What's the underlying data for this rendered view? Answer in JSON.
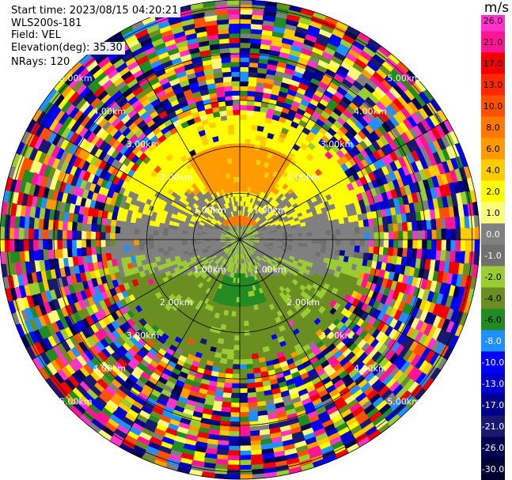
{
  "header": {
    "start_time": "Start time: 2023/08/15 04:20:21",
    "instrument": "WLS200s-181",
    "field": "Field: VEL",
    "elevation": "Elevation(deg): 35.30",
    "nrays": "NRays: 120"
  },
  "ring_labels": [
    "1.00km",
    "2.00km",
    "3.00km",
    "4.00km",
    "5.00km"
  ],
  "colorbar": {
    "unit": "m/s",
    "ticks": [
      "26.0",
      "21.0",
      "17.0",
      "13.0",
      "10.0",
      "8.0",
      "6.0",
      "4.0",
      "2.0",
      "1.0",
      "0.0",
      "-1.0",
      "-2.0",
      "-4.0",
      "-6.0",
      "-8.0",
      "-10.0",
      "-13.0",
      "-17.0",
      "-21.0",
      "-26.0",
      "-30.0"
    ],
    "colors": [
      "#ff33cc",
      "#ff1493",
      "#f00000",
      "#ff2800",
      "#ff5000",
      "#ff7800",
      "#ff9a00",
      "#ffcc00",
      "#ffff00",
      "#fffb7a",
      "#808080",
      "#707070",
      "#9acd32",
      "#6b8e23",
      "#228b22",
      "#1e90ff",
      "#0000ff",
      "#0000cd",
      "#00008b",
      "#191970",
      "#000050",
      "#000033"
    ]
  }
}
